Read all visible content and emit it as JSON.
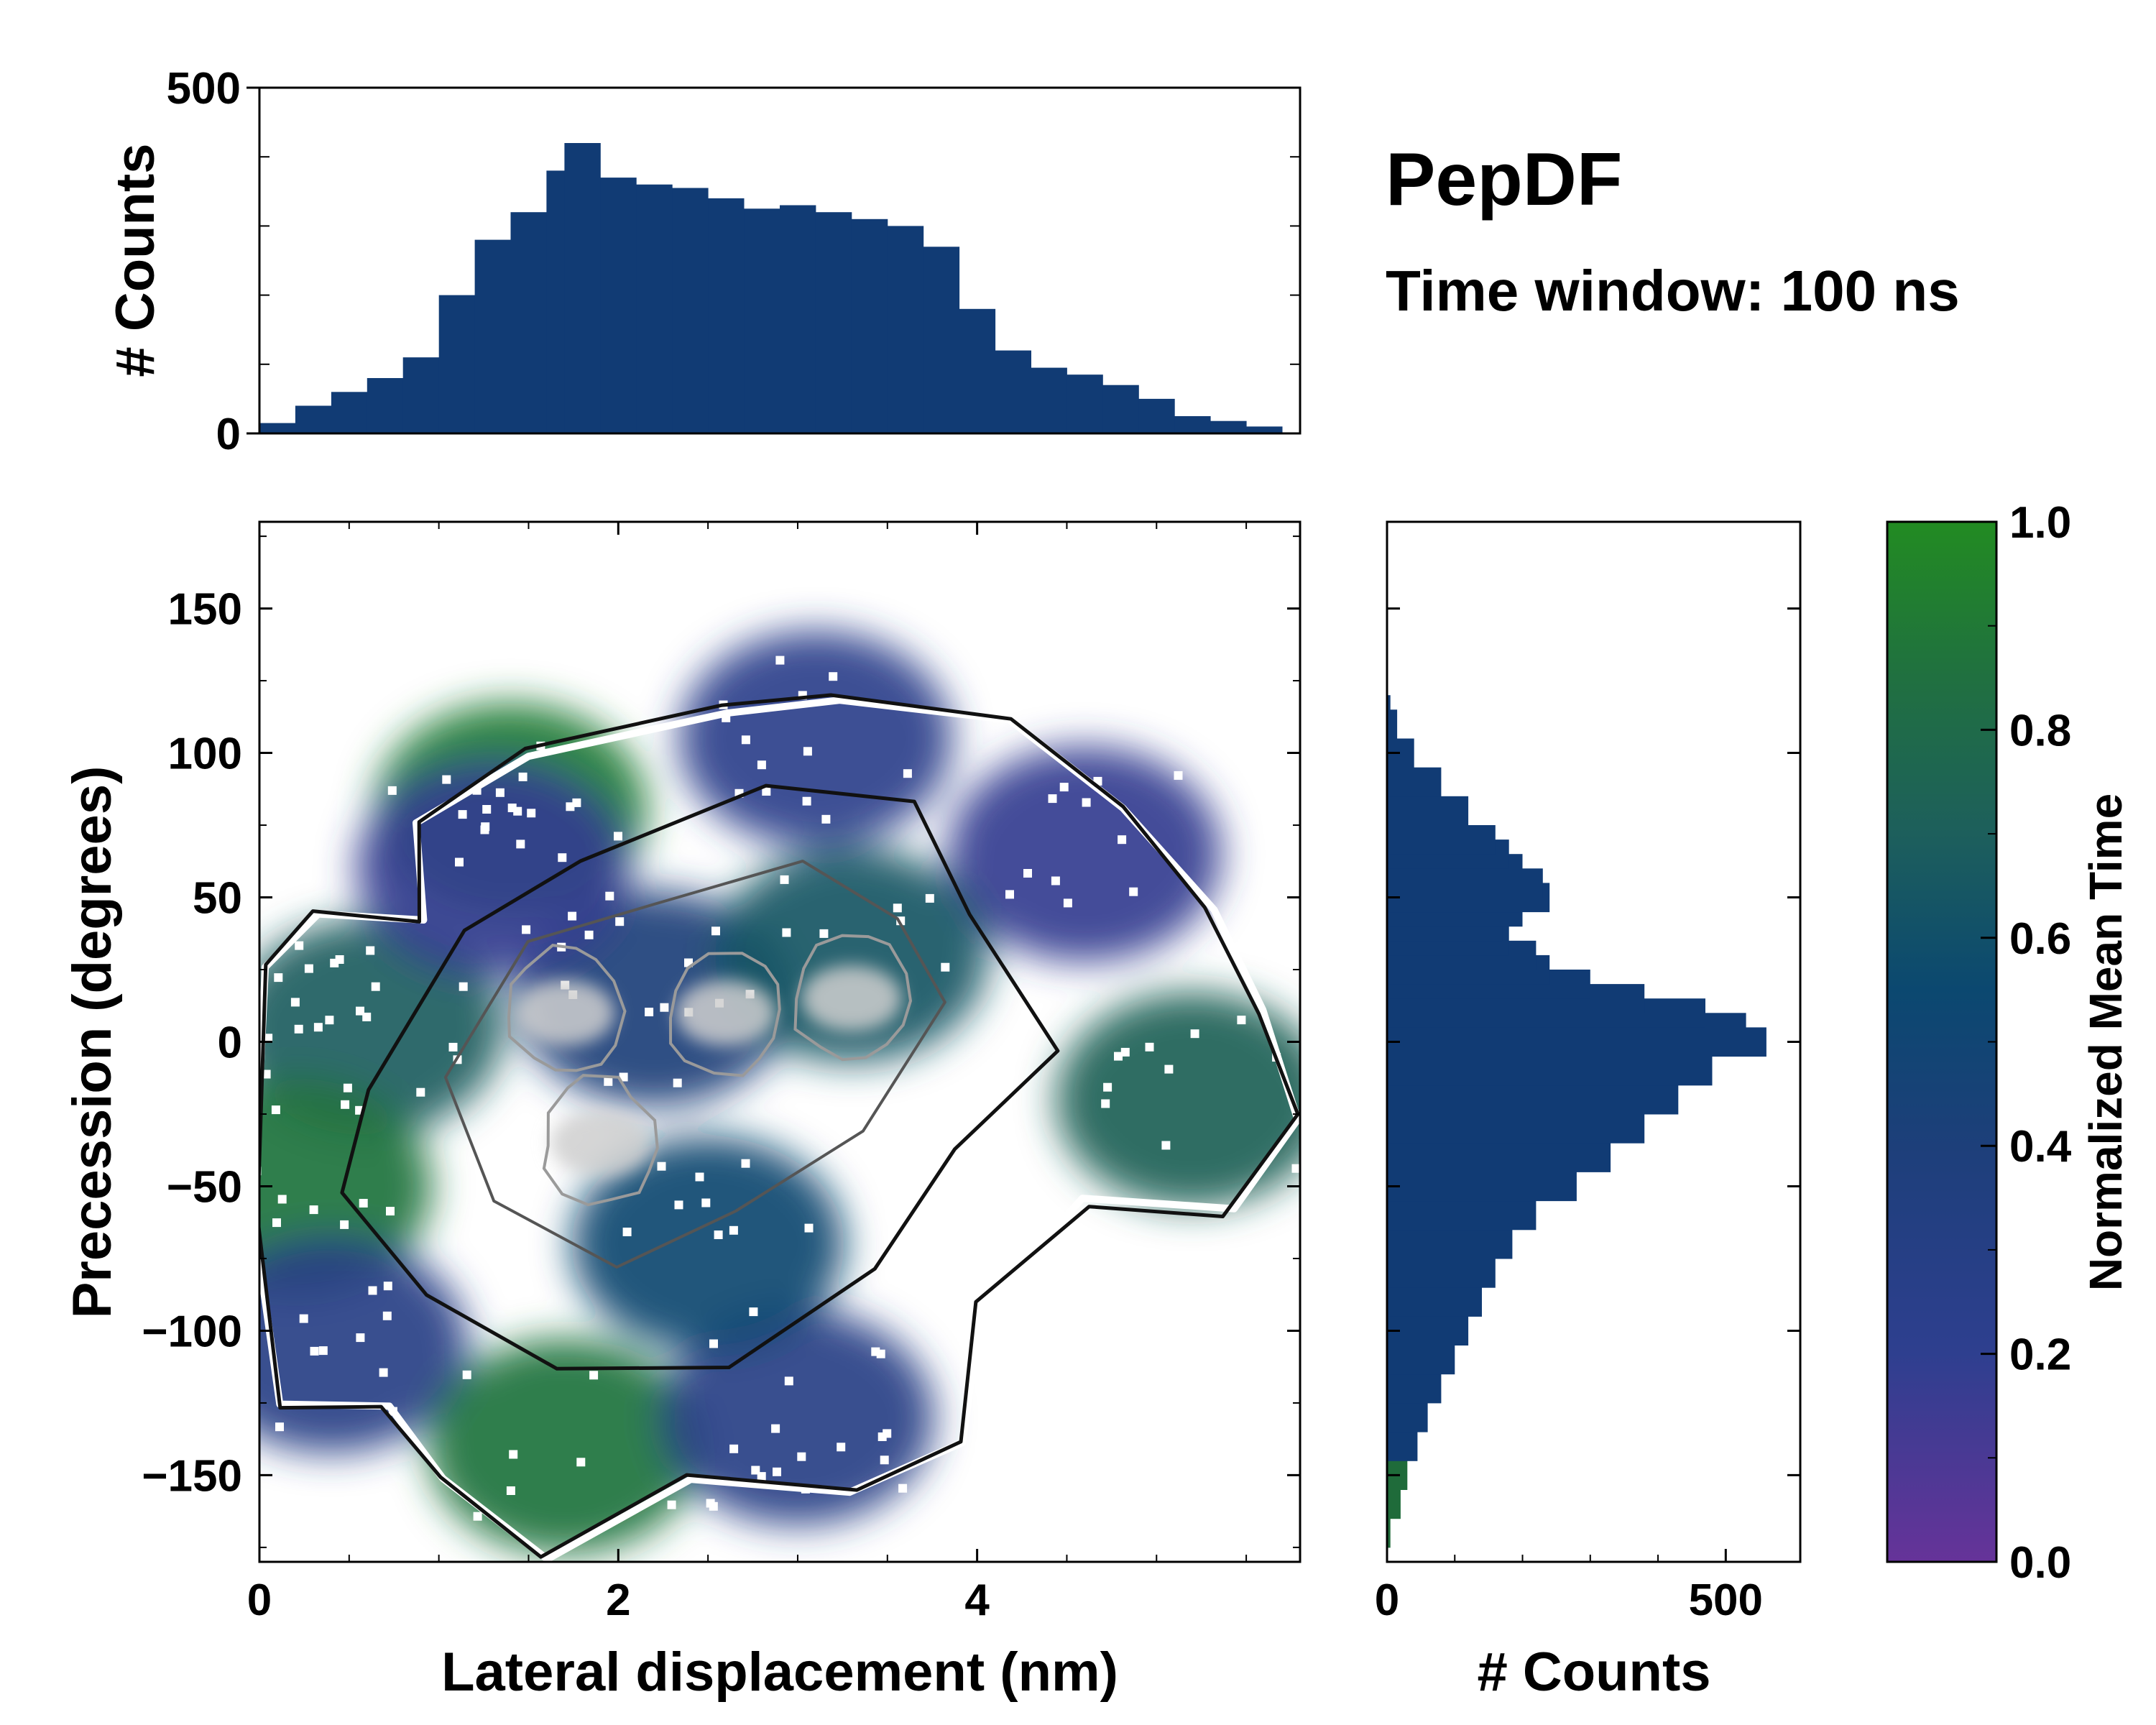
{
  "colors": {
    "colormap": [
      "#663399",
      "#2e3f8f",
      "#1d3f7a",
      "#0b4870",
      "#1d5f5c",
      "#207040",
      "#228b22"
    ],
    "hist_bar": "#113b74",
    "contour_outer": "#111111",
    "contour_mid": "#555555",
    "contour_inner": "#cfcfcf"
  },
  "chart_data": [
    {
      "id": "top_histogram",
      "type": "bar",
      "ylabel": "# Counts",
      "xlim": [
        0,
        5.8
      ],
      "ylim": [
        0,
        500
      ],
      "yticks": [
        0,
        500
      ],
      "x": [
        0.1,
        0.3,
        0.5,
        0.7,
        0.9,
        1.1,
        1.3,
        1.5,
        1.7,
        1.8,
        2.0,
        2.2,
        2.4,
        2.6,
        2.8,
        3.0,
        3.2,
        3.4,
        3.6,
        3.8,
        4.0,
        4.2,
        4.4,
        4.6,
        4.8,
        5.0,
        5.2,
        5.4,
        5.6
      ],
      "values": [
        15,
        40,
        60,
        80,
        110,
        200,
        280,
        320,
        380,
        420,
        370,
        360,
        355,
        340,
        325,
        330,
        320,
        310,
        300,
        270,
        180,
        120,
        95,
        85,
        70,
        50,
        25,
        18,
        10
      ]
    },
    {
      "id": "main_2d",
      "type": "heatmap",
      "xlabel": "Lateral displacement (nm)",
      "ylabel": "Precession (degrees)",
      "xlim": [
        0,
        5.8
      ],
      "ylim": [
        -180,
        180
      ],
      "xticks": [
        0,
        2,
        4
      ],
      "yticks": [
        -150,
        -100,
        -50,
        0,
        50,
        100,
        150
      ],
      "ytick_labels": [
        "−150",
        "−100",
        "−50",
        "0",
        "50",
        "100",
        "150"
      ],
      "value_label": "Normalized Mean Time",
      "regions": [
        {
          "x": 1.4,
          "y": 80,
          "value": 0.9
        },
        {
          "x": 0.6,
          "y": 5,
          "value": 0.65
        },
        {
          "x": 0.2,
          "y": -50,
          "value": 0.85
        },
        {
          "x": 0.4,
          "y": -105,
          "value": 0.25
        },
        {
          "x": 1.7,
          "y": -140,
          "value": 0.85
        },
        {
          "x": 3.0,
          "y": -130,
          "value": 0.25
        },
        {
          "x": 3.1,
          "y": 105,
          "value": 0.2
        },
        {
          "x": 4.6,
          "y": 65,
          "value": 0.15
        },
        {
          "x": 5.2,
          "y": -20,
          "value": 0.7
        },
        {
          "x": 2.2,
          "y": 15,
          "value": 0.35
        },
        {
          "x": 3.3,
          "y": 30,
          "value": 0.6
        },
        {
          "x": 2.5,
          "y": -70,
          "value": 0.5
        },
        {
          "x": 1.3,
          "y": 60,
          "value": 0.15
        }
      ],
      "density_peaks": [
        {
          "x": 1.7,
          "y": 10
        },
        {
          "x": 2.6,
          "y": 10
        },
        {
          "x": 3.3,
          "y": 15
        },
        {
          "x": 1.9,
          "y": -35
        }
      ]
    },
    {
      "id": "right_histogram",
      "type": "bar",
      "orientation": "horizontal",
      "xlabel": "# Counts",
      "xlim": [
        0,
        610
      ],
      "xticks": [
        0,
        500
      ],
      "y": [
        -170,
        -160,
        -150,
        -140,
        -130,
        -120,
        -110,
        -100,
        -90,
        -80,
        -70,
        -60,
        -50,
        -40,
        -30,
        -20,
        -10,
        0,
        5,
        10,
        15,
        20,
        25,
        30,
        35,
        40,
        45,
        50,
        55,
        60,
        65,
        70,
        80,
        90,
        100,
        110,
        115
      ],
      "values": [
        5,
        20,
        30,
        45,
        60,
        80,
        100,
        120,
        140,
        160,
        185,
        220,
        280,
        330,
        380,
        430,
        480,
        560,
        530,
        470,
        380,
        300,
        240,
        220,
        180,
        170,
        200,
        240,
        230,
        200,
        180,
        160,
        120,
        80,
        40,
        15,
        5
      ]
    },
    {
      "id": "colorbar",
      "type": "colorbar",
      "label": "Normalized Mean Time",
      "range": [
        0,
        1
      ],
      "ticks": [
        0.0,
        0.2,
        0.4,
        0.6,
        0.8,
        1.0
      ],
      "tick_labels": [
        "0.0",
        "0.2",
        "0.4",
        "0.6",
        "0.8",
        "1.0"
      ]
    }
  ],
  "annotations": {
    "title": "PepDF",
    "subtitle": "Time window: 100 ns"
  }
}
